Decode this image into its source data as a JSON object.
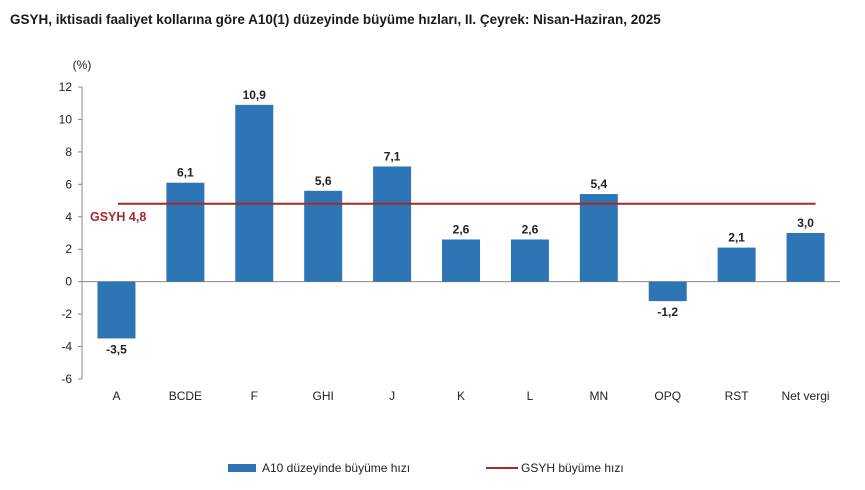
{
  "title": "GSYH, iktisadi faaliyet kollarına göre A10(1) düzeyinde büyüme hızları, II. Çeyrek: Nisan-Haziran, 2025",
  "colors": {
    "bar": "#2e75b6",
    "reference": "#a52a2a",
    "axis": "#888888"
  },
  "chart_data": {
    "type": "bar",
    "title": "GSYH, iktisadi faaliyet kollarına göre A10(1) düzeyinde büyüme hızları, II. Çeyrek: Nisan-Haziran, 2025",
    "unit_label": "(%)",
    "xlabel": "",
    "ylabel": "",
    "ylim": [
      -6,
      12
    ],
    "yticks": [
      -6,
      -4,
      -2,
      0,
      2,
      4,
      6,
      8,
      10,
      12
    ],
    "grid": false,
    "legend_position": "bottom",
    "categories": [
      "A",
      "BCDE",
      "F",
      "GHI",
      "J",
      "K",
      "L",
      "MN",
      "OPQ",
      "RST",
      "Net vergi"
    ],
    "series": [
      {
        "name": "A10 düzeyinde büyüme hızı",
        "values": [
          -3.5,
          6.1,
          10.9,
          5.6,
          7.1,
          2.6,
          2.6,
          5.4,
          -1.2,
          2.1,
          3.0
        ],
        "labels": [
          "-3,5",
          "6,1",
          "10,9",
          "5,6",
          "7,1",
          "2,6",
          "2,6",
          "5,4",
          "-1,2",
          "2,1",
          "3,0"
        ]
      }
    ],
    "reference_line": {
      "name": "GSYH büyüme hızı",
      "value": 4.8,
      "label": "GSYH 4,8"
    }
  }
}
